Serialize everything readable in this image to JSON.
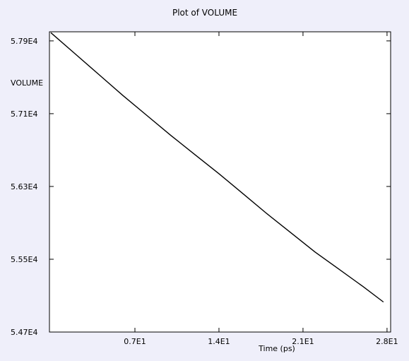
{
  "chart_data": {
    "type": "line",
    "title": "Plot of VOLUME",
    "xlabel": "Time (ps)",
    "ylabel": "VOLUME",
    "xlim": [
      0,
      28
    ],
    "ylim": [
      54700,
      58000
    ],
    "grid": false,
    "x_ticks": [
      7,
      14,
      21,
      28
    ],
    "x_tick_labels": [
      "0.7E1",
      "1.4E1",
      "2.1E1",
      "2.8E1"
    ],
    "y_ticks": [
      54700,
      55500,
      56300,
      57100,
      57900
    ],
    "y_tick_labels": [
      "5.47E4",
      "5.55E4",
      "5.63E4",
      "5.71E4",
      "5.79E4"
    ],
    "series": [
      {
        "color": "#000000",
        "x": [
          0,
          2,
          4,
          6,
          8,
          10,
          12,
          14,
          16,
          18,
          20,
          22,
          24,
          26,
          27.7
        ],
        "y": [
          57990,
          57760,
          57530,
          57300,
          57080,
          56860,
          56650,
          56440,
          56220,
          56000,
          55790,
          55580,
          55390,
          55200,
          55030
        ]
      }
    ]
  }
}
